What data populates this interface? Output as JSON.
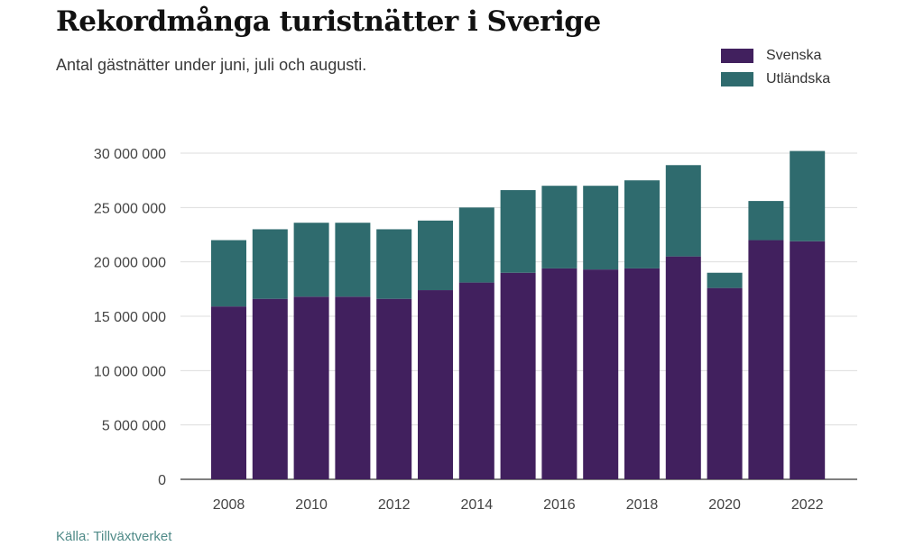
{
  "header": {
    "title": "Rekordmånga turistnätter i Sverige",
    "subtitle": "Antal gästnätter under juni, juli och augusti."
  },
  "legend": {
    "items": [
      {
        "label": "Svenska",
        "color": "#41205e"
      },
      {
        "label": "Utländska",
        "color": "#2f6b6e"
      }
    ]
  },
  "footer": {
    "source": "Källa: Tillväxtverket"
  },
  "chart_data": {
    "type": "bar",
    "stacked": true,
    "title": "Rekordmånga turistnätter i Sverige",
    "subtitle": "Antal gästnätter under juni, juli och augusti.",
    "xlabel": "",
    "ylabel": "",
    "ylim": [
      0,
      30000000
    ],
    "grid": true,
    "legend_position": "top-right",
    "categories": [
      "2008",
      "2009",
      "2010",
      "2011",
      "2012",
      "2013",
      "2014",
      "2015",
      "2016",
      "2017",
      "2018",
      "2019",
      "2020",
      "2021",
      "2022"
    ],
    "x_tick_labels": [
      "2008",
      "2010",
      "2012",
      "2014",
      "2016",
      "2018",
      "2020",
      "2022"
    ],
    "y_ticks": [
      {
        "value": 0,
        "label": "0"
      },
      {
        "value": 5000000,
        "label": "5 000 000"
      },
      {
        "value": 10000000,
        "label": "10 000 000"
      },
      {
        "value": 15000000,
        "label": "15 000 000"
      },
      {
        "value": 20000000,
        "label": "20 000 000"
      },
      {
        "value": 25000000,
        "label": "25 000 000"
      },
      {
        "value": 30000000,
        "label": "30 000 000"
      }
    ],
    "series": [
      {
        "name": "Svenska",
        "color": "#41205e",
        "values": [
          15900000,
          16600000,
          16800000,
          16800000,
          16600000,
          17400000,
          18100000,
          19000000,
          19400000,
          19300000,
          19400000,
          20500000,
          17600000,
          22000000,
          21900000
        ]
      },
      {
        "name": "Utländska",
        "color": "#2f6b6e",
        "values": [
          6100000,
          6400000,
          6800000,
          6800000,
          6400000,
          6400000,
          6900000,
          7600000,
          7600000,
          7700000,
          8100000,
          8400000,
          1400000,
          3600000,
          8300000
        ]
      }
    ]
  }
}
